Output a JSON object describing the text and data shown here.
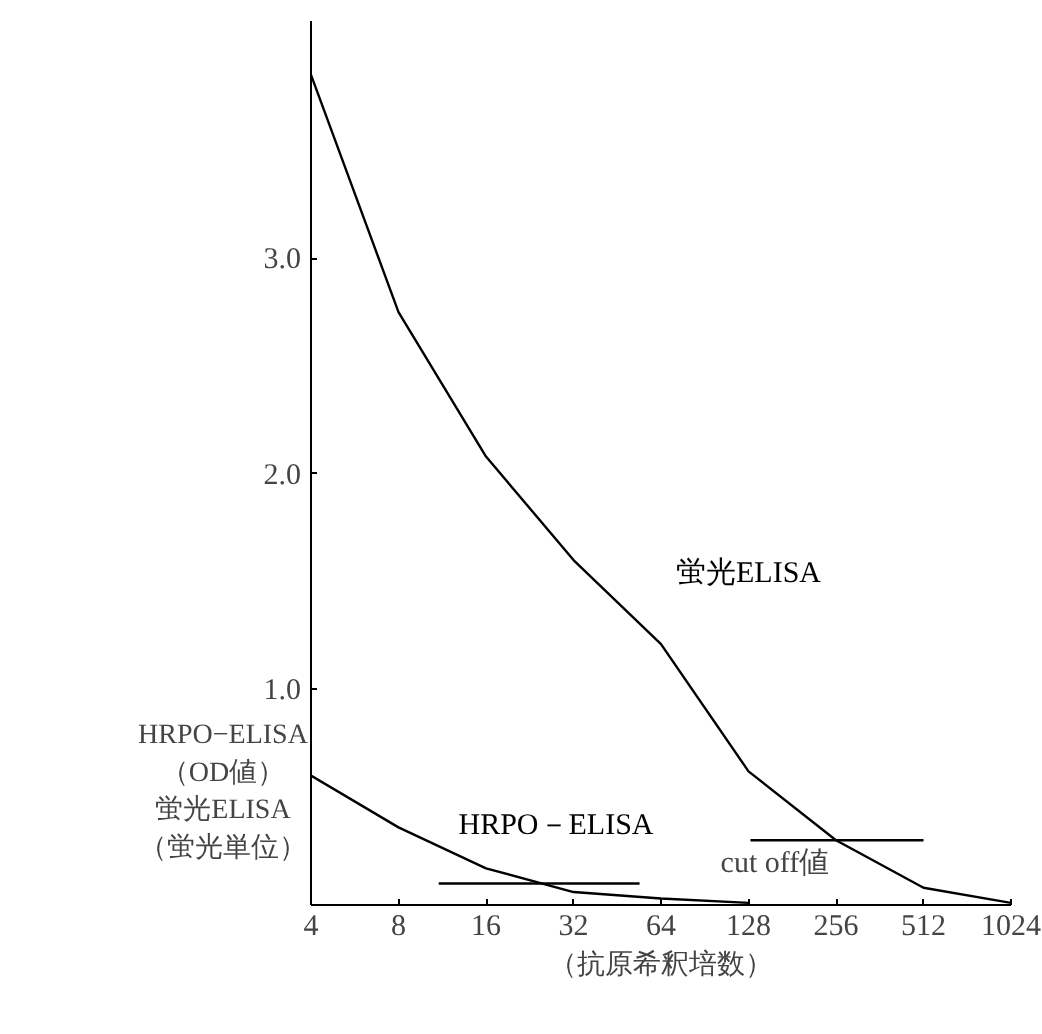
{
  "chart_data": {
    "type": "line",
    "xlabel": "（抗原希釈培数）",
    "ylabel": "HRPO−ELISA（OD値）蛍光ELISA（蛍光単位）",
    "log": "x",
    "xlim": [
      4,
      1024
    ],
    "xticks": [
      4,
      8,
      16,
      32,
      64,
      128,
      256,
      512,
      1024
    ],
    "ylim": [
      0,
      4.1
    ],
    "yticks": [
      {
        "value": 1,
        "label": "1.0"
      },
      {
        "value": 2,
        "label": "2.0"
      },
      {
        "value": 3,
        "label": "3.0"
      }
    ],
    "grid": false,
    "marker": "none",
    "line_style": "solid",
    "series": [
      {
        "name": "蛍光ELISA",
        "color": "#000000",
        "x": [
          4,
          8,
          16,
          32,
          64,
          128,
          256,
          512,
          1024
        ],
        "values": [
          3.85,
          2.75,
          2.08,
          1.6,
          1.21,
          0.62,
          0.3,
          0.08,
          0.01
        ]
      },
      {
        "name": "HRPO－ELISA",
        "color": "#000000",
        "x": [
          4,
          8,
          16,
          32,
          64,
          128
        ],
        "values": [
          0.6,
          0.36,
          0.17,
          0.06,
          0.03,
          0.01
        ]
      },
      {
        "color": "#000000",
        "x": [
          11,
          54
        ],
        "values": [
          0.1,
          0.1
        ]
      },
      {
        "color": "#000000",
        "x": [
          130,
          512
        ],
        "values": [
          0.3,
          0.3
        ]
      }
    ],
    "annotations": [
      "cut off値"
    ]
  }
}
